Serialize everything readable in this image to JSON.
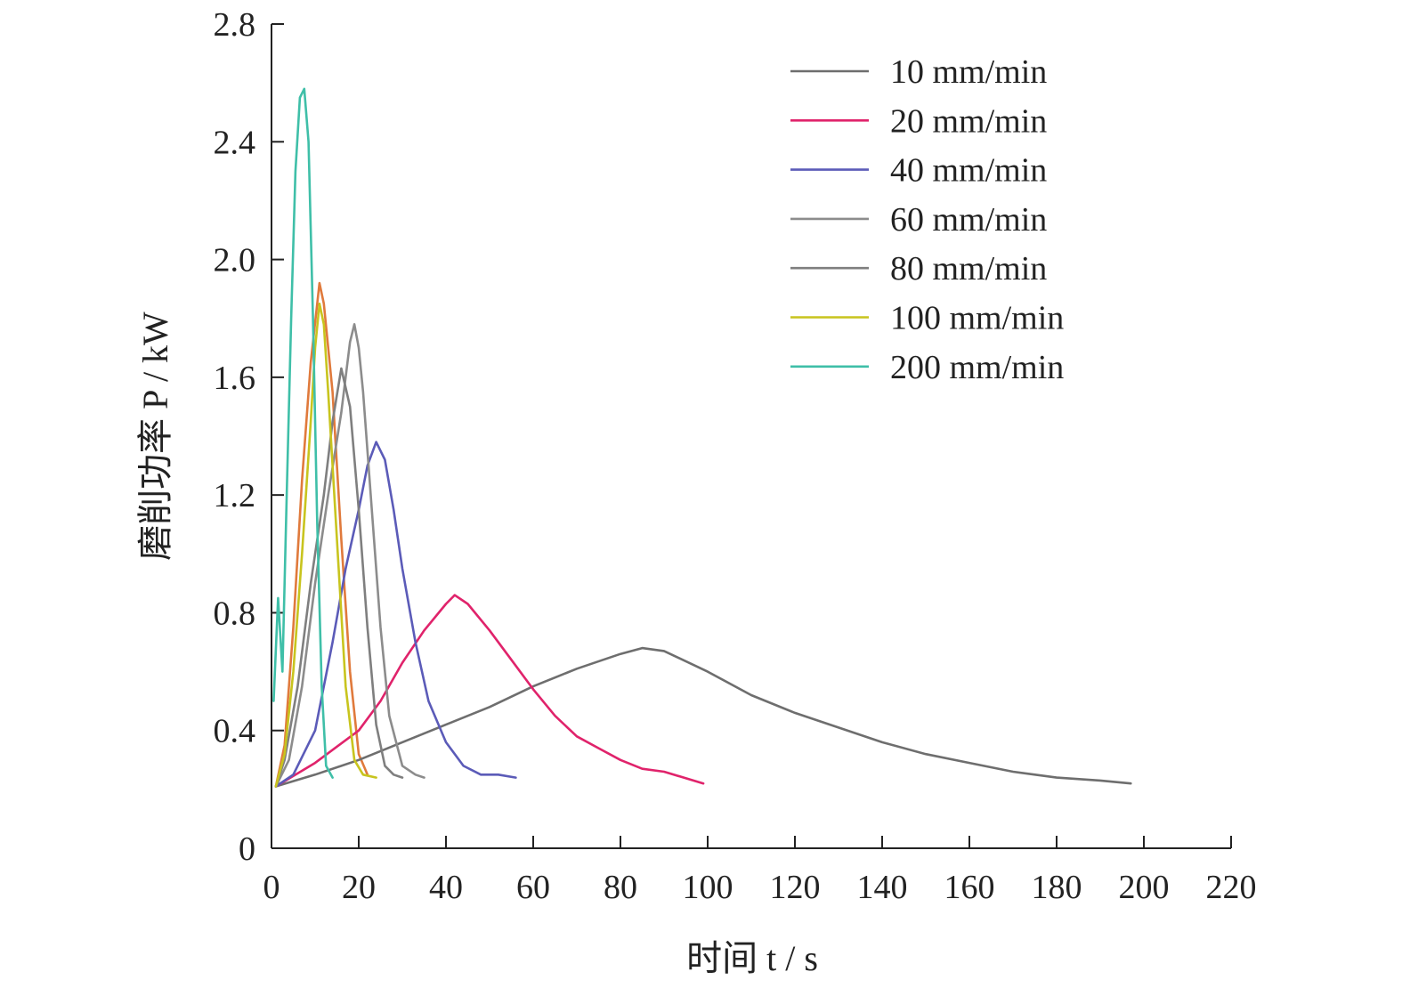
{
  "chart_data": {
    "type": "line",
    "xlabel": "时间 t / s",
    "ylabel": "磨削功率 P / kW",
    "xlim": [
      0,
      220
    ],
    "ylim": [
      0,
      2.8
    ],
    "xticks": [
      0,
      20,
      40,
      60,
      80,
      100,
      120,
      140,
      160,
      180,
      200,
      220
    ],
    "yticks": [
      0,
      0.4,
      0.8,
      1.2,
      1.6,
      2.0,
      2.4,
      2.8
    ],
    "ytick_labels": [
      "0",
      "0.4",
      "0.8",
      "1.2",
      "1.6",
      "2.0",
      "2.4",
      "2.8"
    ],
    "grid": false,
    "legend_position": "top-right",
    "series": [
      {
        "name": "10 mm/min",
        "color": "#6e6e6e",
        "points": [
          [
            1,
            0.21
          ],
          [
            10,
            0.25
          ],
          [
            20,
            0.3
          ],
          [
            30,
            0.36
          ],
          [
            40,
            0.42
          ],
          [
            50,
            0.48
          ],
          [
            60,
            0.55
          ],
          [
            70,
            0.61
          ],
          [
            80,
            0.66
          ],
          [
            85,
            0.68
          ],
          [
            90,
            0.67
          ],
          [
            100,
            0.6
          ],
          [
            110,
            0.52
          ],
          [
            120,
            0.46
          ],
          [
            130,
            0.41
          ],
          [
            140,
            0.36
          ],
          [
            150,
            0.32
          ],
          [
            160,
            0.29
          ],
          [
            170,
            0.26
          ],
          [
            180,
            0.24
          ],
          [
            190,
            0.23
          ],
          [
            197,
            0.22
          ]
        ]
      },
      {
        "name": "20 mm/min",
        "color": "#e0236b",
        "points": [
          [
            1,
            0.21
          ],
          [
            10,
            0.29
          ],
          [
            20,
            0.4
          ],
          [
            25,
            0.5
          ],
          [
            30,
            0.63
          ],
          [
            35,
            0.74
          ],
          [
            40,
            0.83
          ],
          [
            42,
            0.86
          ],
          [
            45,
            0.83
          ],
          [
            50,
            0.74
          ],
          [
            55,
            0.64
          ],
          [
            60,
            0.54
          ],
          [
            65,
            0.45
          ],
          [
            70,
            0.38
          ],
          [
            75,
            0.34
          ],
          [
            80,
            0.3
          ],
          [
            85,
            0.27
          ],
          [
            90,
            0.26
          ],
          [
            99,
            0.22
          ]
        ]
      },
      {
        "name": "40 mm/min",
        "color": "#5b5bb8",
        "points": [
          [
            1,
            0.21
          ],
          [
            5,
            0.25
          ],
          [
            10,
            0.4
          ],
          [
            14,
            0.7
          ],
          [
            17,
            0.95
          ],
          [
            20,
            1.15
          ],
          [
            22,
            1.3
          ],
          [
            24,
            1.38
          ],
          [
            26,
            1.32
          ],
          [
            28,
            1.15
          ],
          [
            30,
            0.95
          ],
          [
            33,
            0.7
          ],
          [
            36,
            0.5
          ],
          [
            40,
            0.36
          ],
          [
            44,
            0.28
          ],
          [
            48,
            0.25
          ],
          [
            52,
            0.25
          ],
          [
            56,
            0.24
          ]
        ]
      },
      {
        "name": "60 mm/min",
        "color": "#8c8c8c",
        "points": [
          [
            1,
            0.21
          ],
          [
            4,
            0.3
          ],
          [
            7,
            0.55
          ],
          [
            10,
            0.9
          ],
          [
            13,
            1.2
          ],
          [
            16,
            1.48
          ],
          [
            18,
            1.72
          ],
          [
            19,
            1.78
          ],
          [
            20,
            1.7
          ],
          [
            21,
            1.55
          ],
          [
            23,
            1.15
          ],
          [
            25,
            0.75
          ],
          [
            27,
            0.45
          ],
          [
            30,
            0.28
          ],
          [
            33,
            0.25
          ],
          [
            35,
            0.24
          ]
        ]
      },
      {
        "name": "80 mm/min",
        "color": "#7f7f7f",
        "points": [
          [
            1,
            0.21
          ],
          [
            3,
            0.3
          ],
          [
            6,
            0.55
          ],
          [
            9,
            0.9
          ],
          [
            12,
            1.2
          ],
          [
            14,
            1.45
          ],
          [
            16,
            1.63
          ],
          [
            18,
            1.5
          ],
          [
            20,
            1.15
          ],
          [
            22,
            0.75
          ],
          [
            24,
            0.42
          ],
          [
            26,
            0.28
          ],
          [
            28,
            0.25
          ],
          [
            30,
            0.24
          ]
        ]
      },
      {
        "name": "100 mm/min",
        "color": "#c8c41e",
        "points": [
          [
            1,
            0.21
          ],
          [
            3,
            0.32
          ],
          [
            5,
            0.6
          ],
          [
            7,
            1.0
          ],
          [
            9,
            1.45
          ],
          [
            10,
            1.7
          ],
          [
            11,
            1.85
          ],
          [
            12,
            1.78
          ],
          [
            13,
            1.55
          ],
          [
            15,
            1.05
          ],
          [
            17,
            0.55
          ],
          [
            19,
            0.3
          ],
          [
            21,
            0.25
          ],
          [
            24,
            0.24
          ]
        ]
      },
      {
        "name": "200 mm/min",
        "color": "#3fbfa8",
        "points": [
          [
            0.5,
            0.5
          ],
          [
            1.5,
            0.85
          ],
          [
            2.5,
            0.6
          ],
          [
            3.5,
            1.2
          ],
          [
            4.5,
            1.8
          ],
          [
            5.5,
            2.3
          ],
          [
            6.5,
            2.55
          ],
          [
            7.5,
            2.58
          ],
          [
            8.5,
            2.4
          ],
          [
            9.5,
            1.8
          ],
          [
            10.5,
            1.1
          ],
          [
            11.5,
            0.55
          ],
          [
            12.5,
            0.28
          ],
          [
            14,
            0.24
          ]
        ]
      }
    ],
    "extra_traces": [
      {
        "color": "#e07a3c",
        "points": [
          [
            1,
            0.21
          ],
          [
            3,
            0.35
          ],
          [
            5,
            0.75
          ],
          [
            7,
            1.25
          ],
          [
            9,
            1.65
          ],
          [
            11,
            1.92
          ],
          [
            12,
            1.85
          ],
          [
            14,
            1.55
          ],
          [
            16,
            1.05
          ],
          [
            18,
            0.6
          ],
          [
            20,
            0.32
          ],
          [
            22,
            0.25
          ]
        ]
      }
    ]
  }
}
